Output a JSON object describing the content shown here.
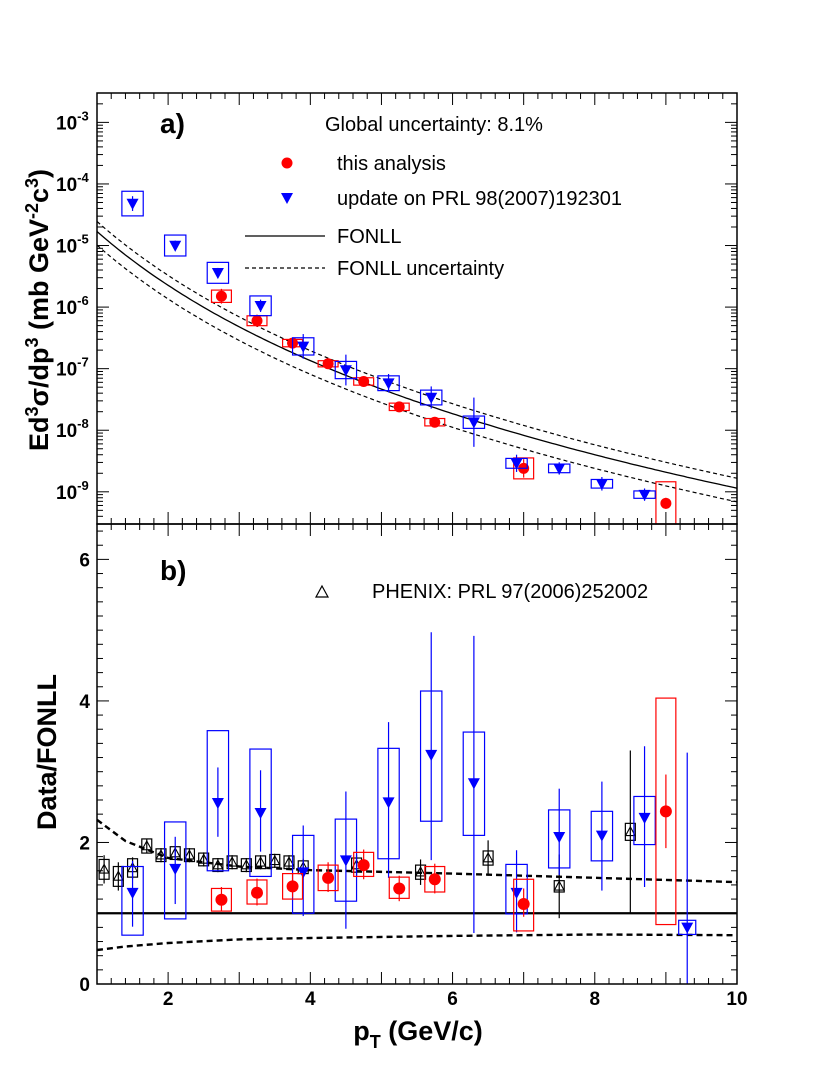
{
  "colors": {
    "red": "#ff0000",
    "blue": "#0000ff",
    "black": "#000000"
  },
  "chart_data": [
    {
      "type": "scatter",
      "panel_label": "a)",
      "global_uncertainty": "Global uncertainty: 8.1%",
      "xlim": [
        1,
        10
      ],
      "ylog": true,
      "ylim": [
        3e-10,
        0.003
      ],
      "ylabel": {
        "t1": "Ed",
        "s1": "3",
        "t2": "σ/dp",
        "s2": "3",
        "t3": " (mb GeV",
        "s3": "-2",
        "t4": "c",
        "s4": "3",
        "t5": ")"
      },
      "ytick_labels": [
        {
          "v": 0.001,
          "exp": "-3"
        },
        {
          "v": 0.0001,
          "exp": "-4"
        },
        {
          "v": 1e-05,
          "exp": "-5"
        },
        {
          "v": 1e-06,
          "exp": "-6"
        },
        {
          "v": 1e-07,
          "exp": "-7"
        },
        {
          "v": 1e-08,
          "exp": "-8"
        },
        {
          "v": 1e-09,
          "exp": "-9"
        }
      ],
      "legend": [
        {
          "marker": "circle",
          "label": "this analysis"
        },
        {
          "marker": "triangle-down",
          "label": "update on PRL 98(2007)192301"
        },
        {
          "marker": "solid-line",
          "label": "FONLL"
        },
        {
          "marker": "dashed-line",
          "label": "FONLL uncertainty"
        }
      ],
      "series": [
        {
          "name": "this analysis",
          "marker": "circle",
          "points": [
            {
              "x": 2.75,
              "y": 1.5e-06,
              "e": 0.12,
              "box": 0.1,
              "bw": 0.14
            },
            {
              "x": 3.25,
              "y": 6e-07,
              "e": 0.1,
              "box": 0.08,
              "bw": 0.14
            },
            {
              "x": 3.75,
              "y": 2.6e-07,
              "e": 0.08,
              "box": 0.06,
              "bw": 0.14
            },
            {
              "x": 4.25,
              "y": 1.2e-07,
              "e": 0.08,
              "box": 0.05,
              "bw": 0.14
            },
            {
              "x": 4.75,
              "y": 6.2e-08,
              "e": 0.08,
              "box": 0.06,
              "bw": 0.14
            },
            {
              "x": 5.25,
              "y": 2.4e-08,
              "e": 0.08,
              "box": 0.06,
              "bw": 0.14
            },
            {
              "x": 5.75,
              "y": 1.35e-08,
              "e": 0.08,
              "box": 0.06,
              "bw": 0.14
            },
            {
              "x": 7.0,
              "y": 2.4e-09,
              "e": 0.15,
              "box": 0.17,
              "bw": 0.14
            },
            {
              "x": 9.0,
              "y": 6.5e-10,
              "e": 0.09,
              "box": 0.35,
              "bw": 0.14
            }
          ]
        },
        {
          "name": "update on PRL 98(2007)192301",
          "marker": "triangle-down",
          "points": [
            {
              "x": 1.5,
              "y": 4.8e-05,
              "e": 0.12,
              "box": 0.2,
              "bw": 0.15
            },
            {
              "x": 2.1,
              "y": 1e-05,
              "e": 0.08,
              "box": 0.17,
              "bw": 0.15
            },
            {
              "x": 2.7,
              "y": 3.6e-06,
              "e": 0.08,
              "box": 0.17,
              "bw": 0.15
            },
            {
              "x": 3.3,
              "y": 1.05e-06,
              "e": 0.1,
              "box": 0.16,
              "bw": 0.15
            },
            {
              "x": 3.9,
              "y": 2.3e-07,
              "e": 0.2,
              "box": 0.14,
              "bw": 0.15
            },
            {
              "x": 4.5,
              "y": 9.5e-08,
              "e": 0.25,
              "box": 0.14,
              "bw": 0.15
            },
            {
              "x": 5.1,
              "y": 5.8e-08,
              "e": 0.15,
              "box": 0.12,
              "bw": 0.15
            },
            {
              "x": 5.7,
              "y": 3.4e-08,
              "e": 0.18,
              "box": 0.12,
              "bw": 0.15
            },
            {
              "x": 6.3,
              "y": 1.35e-08,
              "e": 0.4,
              "box": 0.1,
              "bw": 0.15
            },
            {
              "x": 6.9,
              "y": 2.9e-09,
              "e": 0.14,
              "box": 0.08,
              "bw": 0.15
            },
            {
              "x": 7.5,
              "y": 2.4e-09,
              "e": 0.1,
              "box": 0.07,
              "bw": 0.15
            },
            {
              "x": 8.1,
              "y": 1.35e-09,
              "e": 0.11,
              "box": 0.07,
              "bw": 0.15
            },
            {
              "x": 8.7,
              "y": 9e-10,
              "e": 0.1,
              "box": 0.06,
              "bw": 0.15
            }
          ]
        }
      ],
      "fonll": {
        "A": 0.0003,
        "p0": 1.9,
        "n": 6.8
      },
      "fonll_band": {
        "upper_factor": 1.45,
        "lower_factor": 0.6
      }
    },
    {
      "type": "scatter",
      "panel_label": "b)",
      "xlim": [
        1,
        10
      ],
      "ylim": [
        0,
        6.5
      ],
      "xlabel": {
        "t1": "p",
        "s1": "T",
        "t2": " (GeV/c)"
      },
      "ylabel": "Data/FONLL",
      "xtick_labels": [
        2,
        4,
        6,
        8,
        10
      ],
      "ytick_labels": [
        0,
        2,
        4,
        6
      ],
      "legend": [
        {
          "marker": "triangle-up-open",
          "label": "PHENIX: PRL 97(2006)252002"
        }
      ],
      "reference_line": 1.0,
      "band": {
        "upper": [
          [
            1.0,
            2.32
          ],
          [
            1.4,
            2.02
          ],
          [
            2.0,
            1.78
          ],
          [
            3.0,
            1.66
          ],
          [
            4.0,
            1.61
          ],
          [
            6.0,
            1.56
          ],
          [
            8.0,
            1.5
          ],
          [
            10.0,
            1.44
          ]
        ],
        "lower": [
          [
            1.0,
            0.48
          ],
          [
            1.4,
            0.53
          ],
          [
            2.0,
            0.58
          ],
          [
            3.0,
            0.63
          ],
          [
            4.0,
            0.65
          ],
          [
            6.0,
            0.68
          ],
          [
            8.0,
            0.7
          ],
          [
            10.0,
            0.69
          ]
        ]
      },
      "series": [
        {
          "name": "this analysis",
          "marker": "circle",
          "points": [
            {
              "x": 2.75,
              "y": 1.19,
              "el": 0.16,
              "eh": 0.18,
              "bl": 0.16,
              "bh": 0.16,
              "bw": 0.14
            },
            {
              "x": 3.25,
              "y": 1.29,
              "el": 0.18,
              "eh": 0.2,
              "bl": 0.16,
              "bh": 0.18,
              "bw": 0.14
            },
            {
              "x": 3.75,
              "y": 1.38,
              "el": 0.16,
              "eh": 0.18,
              "bl": 0.18,
              "bh": 0.18,
              "bw": 0.14
            },
            {
              "x": 4.25,
              "y": 1.5,
              "el": 0.2,
              "eh": 0.22,
              "bl": 0.18,
              "bh": 0.18,
              "bw": 0.14
            },
            {
              "x": 4.75,
              "y": 1.68,
              "el": 0.2,
              "eh": 0.22,
              "bl": 0.16,
              "bh": 0.18,
              "bw": 0.14
            },
            {
              "x": 5.25,
              "y": 1.35,
              "el": 0.18,
              "eh": 0.18,
              "bl": 0.14,
              "bh": 0.16,
              "bw": 0.14
            },
            {
              "x": 5.75,
              "y": 1.48,
              "el": 0.2,
              "eh": 0.22,
              "bl": 0.18,
              "bh": 0.18,
              "bw": 0.14
            },
            {
              "x": 7.0,
              "y": 1.13,
              "el": 0.18,
              "eh": 0.22,
              "bl": 0.38,
              "bh": 0.35,
              "bw": 0.14
            },
            {
              "x": 9.0,
              "y": 2.44,
              "el": 0.52,
              "eh": 0.52,
              "bl": 1.6,
              "bh": 1.6,
              "bw": 0.14
            }
          ]
        },
        {
          "name": "update on PRL 98(2007)192301",
          "marker": "triangle-down",
          "points": [
            {
              "x": 1.5,
              "y": 1.29,
              "el": 0.48,
              "eh": 0.45,
              "bl": 0.6,
              "bh": 0.37,
              "bw": 0.15
            },
            {
              "x": 2.1,
              "y": 1.63,
              "el": 0.5,
              "eh": 0.45,
              "bl": 0.71,
              "bh": 0.66,
              "bw": 0.15
            },
            {
              "x": 2.7,
              "y": 2.56,
              "el": 0.48,
              "eh": 0.5,
              "bl": 0.96,
              "bh": 1.02,
              "bw": 0.15
            },
            {
              "x": 3.3,
              "y": 2.42,
              "el": 0.55,
              "eh": 0.6,
              "bl": 0.9,
              "bh": 0.9,
              "bw": 0.15
            },
            {
              "x": 3.9,
              "y": 1.58,
              "el": 0.62,
              "eh": 0.66,
              "bl": 0.58,
              "bh": 0.52,
              "bw": 0.15
            },
            {
              "x": 4.5,
              "y": 1.75,
              "el": 0.97,
              "eh": 0.97,
              "bl": 0.58,
              "bh": 0.58,
              "bw": 0.15
            },
            {
              "x": 5.1,
              "y": 2.57,
              "el": 1.07,
              "eh": 1.13,
              "bl": 0.8,
              "bh": 0.76,
              "bw": 0.15
            },
            {
              "x": 5.7,
              "y": 3.24,
              "el": 1.49,
              "eh": 1.73,
              "bl": 0.94,
              "bh": 0.9,
              "bw": 0.15
            },
            {
              "x": 6.3,
              "y": 2.84,
              "el": 2.12,
              "eh": 2.08,
              "bl": 0.74,
              "bh": 0.72,
              "bw": 0.15
            },
            {
              "x": 6.9,
              "y": 1.29,
              "el": 0.56,
              "eh": 0.6,
              "bl": 0.3,
              "bh": 0.4,
              "bw": 0.15
            },
            {
              "x": 7.5,
              "y": 2.08,
              "el": 0.54,
              "eh": 0.68,
              "bl": 0.44,
              "bh": 0.38,
              "bw": 0.15
            },
            {
              "x": 8.1,
              "y": 2.1,
              "el": 0.78,
              "eh": 0.76,
              "bl": 0.36,
              "bh": 0.34,
              "bw": 0.15
            },
            {
              "x": 8.7,
              "y": 2.35,
              "el": 0.98,
              "eh": 1.01,
              "bl": 0.38,
              "bh": 0.3,
              "bw": 0.15
            },
            {
              "x": 9.3,
              "y": 0.8,
              "el": 0.8,
              "eh": 2.47,
              "bl": 0.1,
              "bh": 0.1,
              "bw": 0.12
            }
          ]
        },
        {
          "name": "PHENIX: PRL 97(2006)252002",
          "marker": "triangle-up-open",
          "points": [
            {
              "x": 1.1,
              "y": 1.62,
              "el": 0.2,
              "eh": 0.2,
              "bl": 0.14,
              "bh": 0.14,
              "bw": 0.07
            },
            {
              "x": 1.3,
              "y": 1.52,
              "el": 0.2,
              "eh": 0.2,
              "bl": 0.14,
              "bh": 0.14,
              "bw": 0.07
            },
            {
              "x": 1.5,
              "y": 1.64,
              "el": 0.15,
              "eh": 0.15,
              "bl": 0.13,
              "bh": 0.13,
              "bw": 0.07
            },
            {
              "x": 1.7,
              "y": 1.95,
              "el": 0.1,
              "eh": 0.1,
              "bl": 0.1,
              "bh": 0.1,
              "bw": 0.07
            },
            {
              "x": 1.9,
              "y": 1.82,
              "el": 0.1,
              "eh": 0.1,
              "bl": 0.09,
              "bh": 0.09,
              "bw": 0.07
            },
            {
              "x": 2.1,
              "y": 1.85,
              "el": 0.1,
              "eh": 0.1,
              "bl": 0.09,
              "bh": 0.09,
              "bw": 0.07
            },
            {
              "x": 2.3,
              "y": 1.82,
              "el": 0.1,
              "eh": 0.1,
              "bl": 0.09,
              "bh": 0.09,
              "bw": 0.07
            },
            {
              "x": 2.5,
              "y": 1.76,
              "el": 0.1,
              "eh": 0.1,
              "bl": 0.09,
              "bh": 0.09,
              "bw": 0.07
            },
            {
              "x": 2.7,
              "y": 1.68,
              "el": 0.1,
              "eh": 0.1,
              "bl": 0.09,
              "bh": 0.09,
              "bw": 0.07
            },
            {
              "x": 2.9,
              "y": 1.72,
              "el": 0.1,
              "eh": 0.1,
              "bl": 0.09,
              "bh": 0.09,
              "bw": 0.07
            },
            {
              "x": 3.1,
              "y": 1.68,
              "el": 0.1,
              "eh": 0.1,
              "bl": 0.09,
              "bh": 0.09,
              "bw": 0.07
            },
            {
              "x": 3.3,
              "y": 1.72,
              "el": 0.1,
              "eh": 0.1,
              "bl": 0.09,
              "bh": 0.09,
              "bw": 0.07
            },
            {
              "x": 3.5,
              "y": 1.74,
              "el": 0.1,
              "eh": 0.1,
              "bl": 0.09,
              "bh": 0.09,
              "bw": 0.07
            },
            {
              "x": 3.7,
              "y": 1.72,
              "el": 0.1,
              "eh": 0.1,
              "bl": 0.09,
              "bh": 0.09,
              "bw": 0.07
            },
            {
              "x": 3.9,
              "y": 1.65,
              "el": 0.12,
              "eh": 0.12,
              "bl": 0.09,
              "bh": 0.09,
              "bw": 0.07
            },
            {
              "x": 4.65,
              "y": 1.68,
              "el": 0.15,
              "eh": 0.15,
              "bl": 0.1,
              "bh": 0.1,
              "bw": 0.07
            },
            {
              "x": 5.55,
              "y": 1.58,
              "el": 0.18,
              "eh": 0.18,
              "bl": 0.1,
              "bh": 0.1,
              "bw": 0.07
            },
            {
              "x": 6.5,
              "y": 1.78,
              "el": 0.25,
              "eh": 0.25,
              "bl": 0.1,
              "bh": 0.1,
              "bw": 0.07
            },
            {
              "x": 7.5,
              "y": 1.38,
              "el": 0.45,
              "eh": 0.45,
              "bl": 0.08,
              "bh": 0.08,
              "bw": 0.07
            },
            {
              "x": 8.5,
              "y": 2.15,
              "el": 1.15,
              "eh": 1.15,
              "bl": 0.12,
              "bh": 0.12,
              "bw": 0.07
            }
          ]
        }
      ]
    }
  ]
}
